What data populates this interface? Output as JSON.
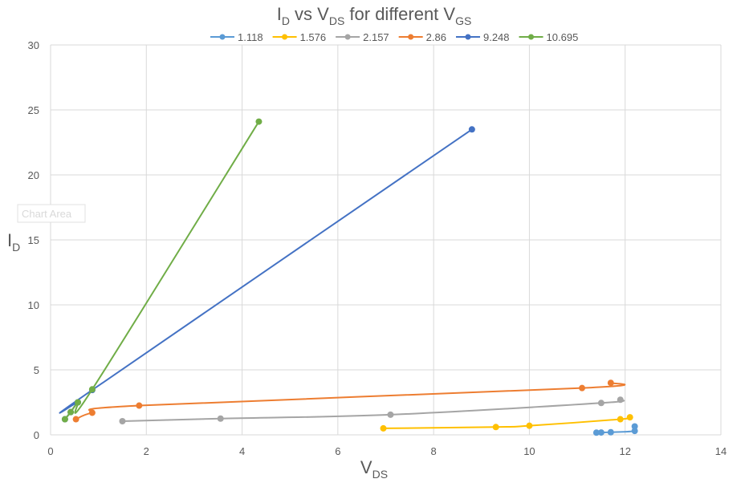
{
  "chart_data": {
    "type": "line",
    "title": {
      "main_1": "I",
      "sub_1": "D",
      "main_2": " vs V",
      "sub_2": "DS",
      "main_3": "  for different V",
      "sub_3": "GS"
    },
    "xlabel": {
      "main": "V",
      "sub": "DS"
    },
    "ylabel": {
      "main": "I",
      "sub": "D"
    },
    "xlim": [
      0,
      14
    ],
    "ylim": [
      0,
      30
    ],
    "xticks": [
      0,
      2,
      4,
      6,
      8,
      10,
      12,
      14
    ],
    "yticks": [
      0,
      5,
      10,
      15,
      20,
      25,
      30
    ],
    "grid": true,
    "legend_position": "top",
    "series": [
      {
        "name": "1.118",
        "color": "#5B9BD5",
        "points": [
          [
            12.2,
            0.65
          ],
          [
            12.2,
            0.3
          ],
          [
            11.7,
            0.2
          ],
          [
            11.5,
            0.18
          ],
          [
            11.4,
            0.17
          ]
        ]
      },
      {
        "name": "1.576",
        "color": "#FFC000",
        "points": [
          [
            12.1,
            1.35
          ],
          [
            11.9,
            1.2
          ],
          [
            10.0,
            0.7
          ],
          [
            9.3,
            0.6
          ],
          [
            6.95,
            0.5
          ]
        ]
      },
      {
        "name": "2.157",
        "color": "#A5A5A5",
        "points": [
          [
            11.9,
            2.7
          ],
          [
            11.5,
            2.45
          ],
          [
            7.1,
            1.55
          ],
          [
            3.55,
            1.25
          ],
          [
            1.5,
            1.05
          ]
        ]
      },
      {
        "name": "2.86",
        "color": "#ED7D31",
        "points": [
          [
            11.7,
            4.0
          ],
          [
            11.1,
            3.6
          ],
          [
            1.85,
            2.25
          ],
          [
            0.87,
            1.7
          ],
          [
            0.53,
            1.2
          ]
        ]
      },
      {
        "name": "9.248",
        "color": "#4472C4",
        "points": [
          [
            8.8,
            23.5
          ],
          [
            0.87,
            3.45
          ],
          [
            0.57,
            2.5
          ],
          [
            0.42,
            1.75
          ],
          [
            0.3,
            1.2
          ]
        ]
      },
      {
        "name": "10.695",
        "color": "#70AD47",
        "points": [
          [
            4.35,
            24.1
          ],
          [
            0.87,
            3.5
          ],
          [
            0.57,
            2.5
          ],
          [
            0.42,
            1.75
          ],
          [
            0.3,
            1.2
          ]
        ]
      }
    ],
    "tooltip": "Chart Area"
  }
}
